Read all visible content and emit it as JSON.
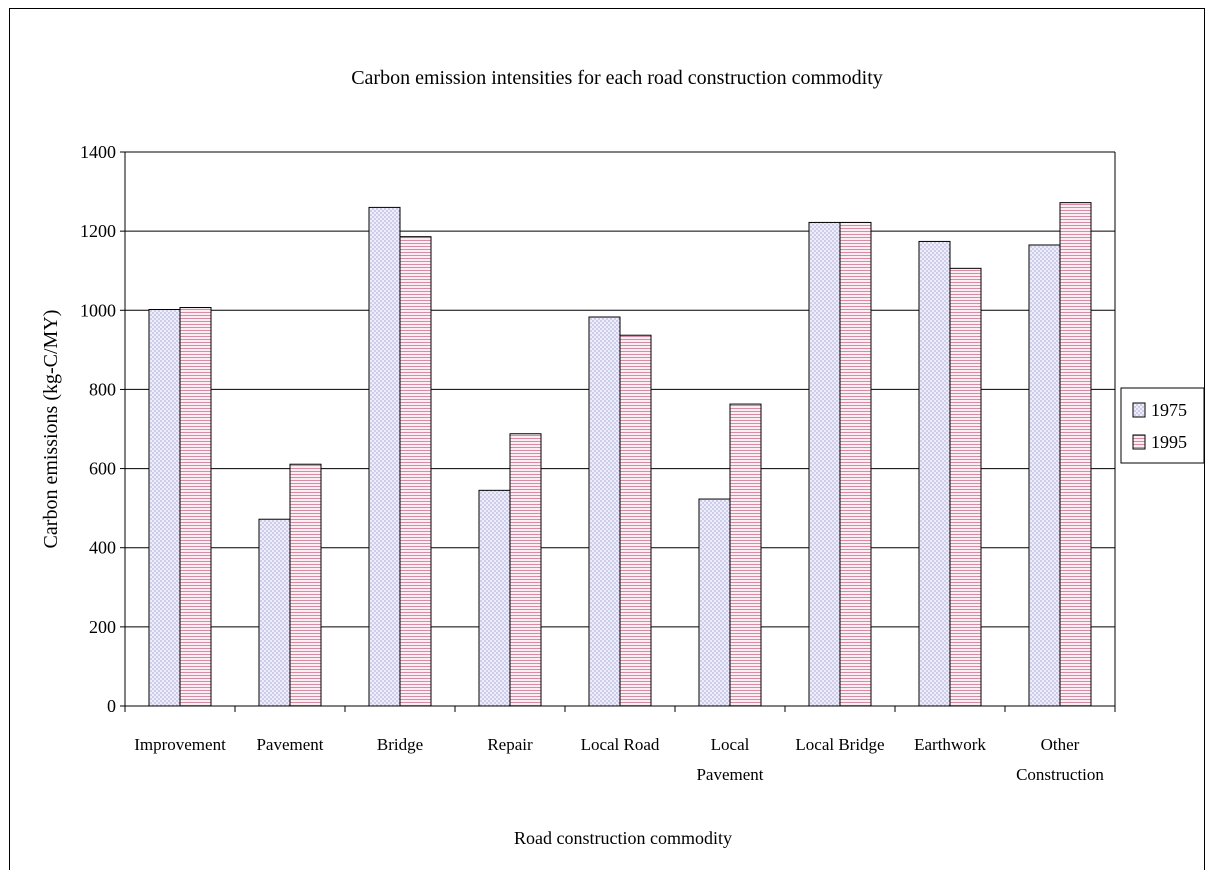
{
  "chart_data": {
    "type": "bar",
    "title": "Carbon emission intensities for each road construction commodity",
    "xlabel": "Road construction commodity",
    "ylabel": "Carbon emissions (kg-C/MY)",
    "ylim": [
      0,
      1400
    ],
    "yticks": [
      0,
      200,
      400,
      600,
      800,
      1000,
      1200,
      1400
    ],
    "grid": true,
    "legend_position": "right",
    "categories": [
      [
        "Improvement"
      ],
      [
        "Pavement"
      ],
      [
        "Bridge"
      ],
      [
        "Repair"
      ],
      [
        "Local Road"
      ],
      [
        "Local",
        "Pavement"
      ],
      [
        "Local Bridge"
      ],
      [
        "Earthwork"
      ],
      [
        "Other",
        "Construction"
      ]
    ],
    "series": [
      {
        "name": "1975",
        "color": "#e6e6f5",
        "pattern": "dots",
        "values": [
          1002,
          472,
          1260,
          545,
          983,
          523,
          1222,
          1174,
          1165
        ]
      },
      {
        "name": "1995",
        "color": "#f3dbe6",
        "pattern": "horizontal-lines",
        "values": [
          1007,
          611,
          1186,
          688,
          937,
          763,
          1222,
          1106,
          1272
        ]
      }
    ]
  }
}
